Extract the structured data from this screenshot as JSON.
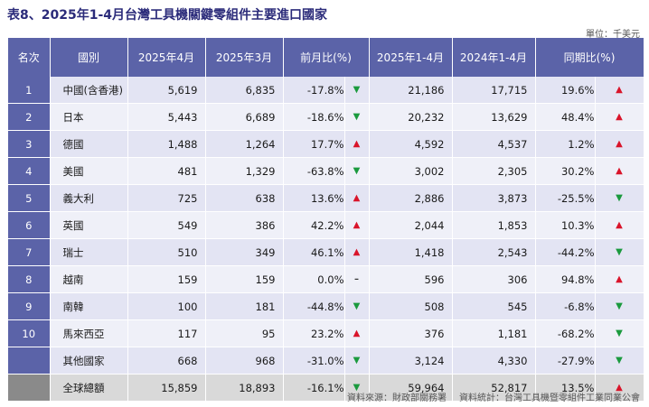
{
  "title": "表8、2025年1-4月台灣工具機關鍵零組件主要進口國家",
  "unit": "單位：千美元",
  "headers": [
    "名次",
    "國別",
    "2025年4月",
    "2025年3月",
    "前月比(%)",
    "2025年1-4月",
    "2024年1-4月",
    "同期比(%)"
  ],
  "rows": [
    {
      "rank": "1",
      "country": "中國(含香港)",
      "apr": "5,619",
      "mar": "6,835",
      "mom": "-17.8%",
      "mom_dir": "▼",
      "ytd25": "21,186",
      "ytd24": "17,715",
      "yoy": "19.6%",
      "yoy_dir": "▲"
    },
    {
      "rank": "2",
      "country": "日本",
      "apr": "5,443",
      "mar": "6,689",
      "mom": "-18.6%",
      "mom_dir": "▼",
      "ytd25": "20,232",
      "ytd24": "13,629",
      "yoy": "48.4%",
      "yoy_dir": "▲"
    },
    {
      "rank": "3",
      "country": "德國",
      "apr": "1,488",
      "mar": "1,264",
      "mom": "17.7%",
      "mom_dir": "▲",
      "ytd25": "4,592",
      "ytd24": "4,537",
      "yoy": "1.2%",
      "yoy_dir": "▲"
    },
    {
      "rank": "4",
      "country": "美國",
      "apr": "481",
      "mar": "1,329",
      "mom": "-63.8%",
      "mom_dir": "▼",
      "ytd25": "3,002",
      "ytd24": "2,305",
      "yoy": "30.2%",
      "yoy_dir": "▲"
    },
    {
      "rank": "5",
      "country": "義大利",
      "apr": "725",
      "mar": "638",
      "mom": "13.6%",
      "mom_dir": "▲",
      "ytd25": "2,886",
      "ytd24": "3,873",
      "yoy": "-25.5%",
      "yoy_dir": "▼"
    },
    {
      "rank": "6",
      "country": "英國",
      "apr": "549",
      "mar": "386",
      "mom": "42.2%",
      "mom_dir": "▲",
      "ytd25": "2,044",
      "ytd24": "1,853",
      "yoy": "10.3%",
      "yoy_dir": "▲"
    },
    {
      "rank": "7",
      "country": "瑞士",
      "apr": "510",
      "mar": "349",
      "mom": "46.1%",
      "mom_dir": "▲",
      "ytd25": "1,418",
      "ytd24": "2,543",
      "yoy": "-44.2%",
      "yoy_dir": "▼"
    },
    {
      "rank": "8",
      "country": "越南",
      "apr": "159",
      "mar": "159",
      "mom": "0.0%",
      "mom_dir": "–",
      "ytd25": "596",
      "ytd24": "306",
      "yoy": "94.8%",
      "yoy_dir": "▲"
    },
    {
      "rank": "9",
      "country": "南韓",
      "apr": "100",
      "mar": "181",
      "mom": "-44.8%",
      "mom_dir": "▼",
      "ytd25": "508",
      "ytd24": "545",
      "yoy": "-6.8%",
      "yoy_dir": "▼"
    },
    {
      "rank": "10",
      "country": "馬來西亞",
      "apr": "117",
      "mar": "95",
      "mom": "23.2%",
      "mom_dir": "▲",
      "ytd25": "376",
      "ytd24": "1,181",
      "yoy": "-68.2%",
      "yoy_dir": "▼"
    },
    {
      "rank": "",
      "country": "其他國家",
      "apr": "668",
      "mar": "968",
      "mom": "-31.0%",
      "mom_dir": "▼",
      "ytd25": "3,124",
      "ytd24": "4,330",
      "yoy": "-27.9%",
      "yoy_dir": "▼"
    }
  ],
  "total": {
    "rank": "",
    "country": "全球總額",
    "apr": "15,859",
    "mar": "18,893",
    "mom": "-16.1%",
    "mom_dir": "▼",
    "ytd25": "59,964",
    "ytd24": "52,817",
    "yoy": "13.5%",
    "yoy_dir": "▲"
  },
  "source": "資料來源：財政部關務署",
  "statistics": "資料統計：台灣工具機暨零組件工業同業公會"
}
